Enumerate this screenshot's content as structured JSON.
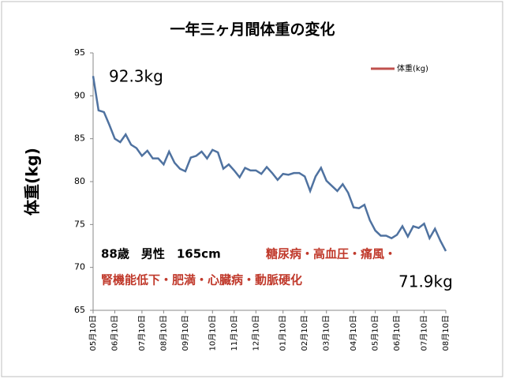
{
  "chart_data": {
    "type": "line",
    "title": "一年三ヶ月間体重の変化",
    "y_label": "体重(kg)",
    "categories": [
      "05月10日",
      null,
      null,
      null,
      "06月10日",
      null,
      null,
      null,
      null,
      "07月10日",
      null,
      null,
      null,
      "08月10日",
      null,
      null,
      null,
      "09月10日",
      null,
      null,
      null,
      null,
      "10月10日",
      null,
      null,
      null,
      "11月10日",
      null,
      null,
      null,
      "12月10日",
      null,
      null,
      null,
      null,
      "01月10日",
      null,
      null,
      null,
      "02月10日",
      null,
      null,
      null,
      "03月10日",
      null,
      null,
      null,
      null,
      "04月10日",
      null,
      null,
      null,
      "05月10日",
      null,
      null,
      null,
      "06月10日",
      null,
      null,
      null,
      null,
      "07月10日",
      null,
      null,
      null,
      "08月10日"
    ],
    "series": [
      {
        "name": "体重(kg)",
        "color": "#4f72a0",
        "legend_color": "#c0504d",
        "values": [
          92.3,
          88.3,
          88.1,
          86.6,
          85.0,
          84.6,
          85.5,
          84.3,
          83.9,
          83.0,
          83.6,
          82.7,
          82.7,
          82.0,
          83.5,
          82.2,
          81.5,
          81.2,
          82.8,
          83.0,
          83.5,
          82.7,
          83.7,
          83.4,
          81.5,
          82.0,
          81.3,
          80.5,
          81.6,
          81.3,
          81.3,
          80.9,
          81.7,
          81.0,
          80.2,
          80.9,
          80.8,
          81.0,
          81.0,
          80.6,
          78.9,
          80.6,
          81.6,
          80.1,
          79.5,
          78.9,
          79.7,
          78.7,
          77.0,
          76.9,
          77.3,
          75.5,
          74.3,
          73.7,
          73.7,
          73.4,
          73.8,
          74.8,
          73.6,
          74.8,
          74.6,
          75.1,
          73.4,
          74.5,
          73.1,
          71.9
        ]
      }
    ],
    "ylim": [
      65,
      95
    ],
    "yticks": [
      65,
      70,
      75,
      80,
      85,
      90,
      95
    ],
    "grid": false,
    "legend": "top-right",
    "annotations": [
      "92.3kg",
      "71.9kg",
      "88歳　男性　165cm",
      "糖尿病・高血圧・痛風・",
      "腎機能低下・肥満・心臓病・動脈硬化"
    ]
  }
}
